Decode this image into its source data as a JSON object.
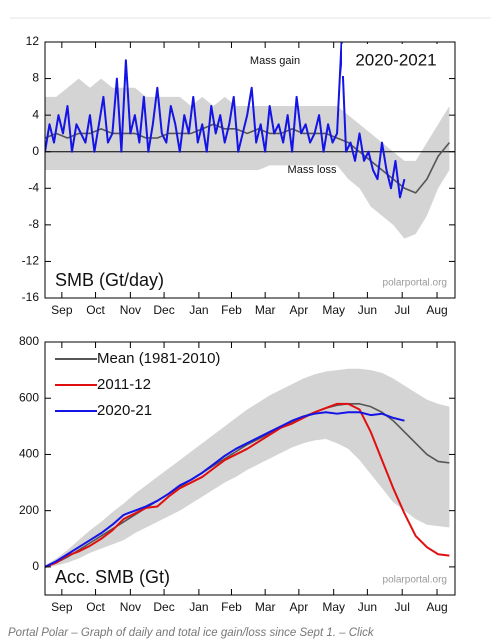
{
  "chart_data": [
    {
      "type": "line",
      "title": "2020-2021",
      "ylabel": "SMB (Gt/day)",
      "source": "polarportal.org",
      "annotations": [
        "Mass gain",
        "Mass loss"
      ],
      "zero_line": true,
      "xlim": [
        0,
        365
      ],
      "xticks": [
        {
          "value": 15,
          "label": "Sep"
        },
        {
          "value": 45,
          "label": "Oct"
        },
        {
          "value": 76,
          "label": "Nov"
        },
        {
          "value": 106,
          "label": "Dec"
        },
        {
          "value": 137,
          "label": "Jan"
        },
        {
          "value": 166,
          "label": "Feb"
        },
        {
          "value": 196,
          "label": "Mar"
        },
        {
          "value": 226,
          "label": "Apr"
        },
        {
          "value": 257,
          "label": "May"
        },
        {
          "value": 287,
          "label": "Jun"
        },
        {
          "value": 318,
          "label": "Jul"
        },
        {
          "value": 349,
          "label": "Aug"
        }
      ],
      "ylim": [
        -16,
        12
      ],
      "yticks": [
        -16,
        -12,
        -8,
        -4,
        0,
        4,
        8,
        12
      ],
      "band": {
        "color": "#d4d4d4",
        "x": [
          0,
          10,
          20,
          30,
          40,
          50,
          60,
          70,
          80,
          90,
          100,
          110,
          120,
          130,
          140,
          150,
          160,
          170,
          180,
          190,
          200,
          210,
          220,
          230,
          240,
          250,
          260,
          270,
          280,
          290,
          300,
          310,
          320,
          330,
          340,
          350,
          360
        ],
        "upper": [
          6,
          6,
          7,
          8,
          7,
          8,
          7,
          7,
          7,
          6,
          6,
          6,
          6,
          5,
          6,
          5,
          6,
          5,
          5,
          5,
          5,
          5,
          5,
          5,
          5,
          5,
          5,
          4,
          3,
          2,
          1,
          0,
          -1,
          -1,
          1,
          3,
          5
        ],
        "lower": [
          -2,
          -2,
          -2,
          -2,
          -2,
          -2,
          -2,
          -2,
          -2,
          -2,
          -2,
          -2,
          -2,
          -2,
          -2,
          -2,
          -2,
          -2,
          -2,
          -2,
          -1.5,
          -1.5,
          -1.5,
          -1.5,
          -1.5,
          -1.5,
          -1.5,
          -3,
          -4,
          -6,
          -7,
          -8,
          -9.5,
          -9,
          -7,
          -4,
          -2
        ]
      },
      "series": [
        {
          "color": "#555555",
          "x": [
            0,
            10,
            20,
            30,
            40,
            50,
            60,
            70,
            80,
            90,
            100,
            110,
            120,
            130,
            140,
            150,
            160,
            170,
            180,
            190,
            200,
            210,
            220,
            230,
            240,
            250,
            260,
            270,
            280,
            290,
            300,
            310,
            320,
            330,
            340,
            350,
            360
          ],
          "values": [
            1.5,
            2,
            1.5,
            2,
            2,
            2.5,
            2,
            2,
            2,
            1.5,
            1.5,
            2,
            2,
            2,
            2.5,
            3,
            2.5,
            2.5,
            2,
            2.5,
            2,
            2,
            2.5,
            2,
            2,
            2,
            1.5,
            1,
            0,
            -1,
            -2,
            -3,
            -4,
            -4.5,
            -3,
            -0.5,
            1
          ]
        },
        {
          "color": "#1414e6",
          "x": [
            0,
            4,
            8,
            12,
            16,
            20,
            24,
            28,
            32,
            36,
            40,
            44,
            48,
            52,
            56,
            60,
            64,
            68,
            72,
            76,
            80,
            84,
            88,
            92,
            96,
            100,
            104,
            108,
            112,
            116,
            120,
            124,
            128,
            132,
            136,
            140,
            144,
            148,
            152,
            156,
            160,
            164,
            168,
            172,
            176,
            180,
            184,
            188,
            192,
            196,
            200,
            204,
            208,
            212,
            216,
            220,
            224,
            228,
            232,
            236,
            240,
            244,
            248,
            252,
            256,
            260,
            264,
            268,
            272,
            276,
            280,
            284,
            288,
            292,
            296,
            300,
            304,
            308,
            312,
            316,
            320
          ],
          "values": [
            0,
            3,
            1,
            4,
            2,
            5,
            0,
            3,
            2,
            1,
            4,
            0,
            3,
            6,
            1,
            2,
            8,
            0,
            10,
            2,
            4,
            1,
            6,
            0,
            3,
            7,
            2,
            1,
            5,
            3,
            0,
            4,
            2,
            6,
            1,
            3,
            0,
            5,
            2,
            4,
            1,
            3,
            6,
            0,
            2,
            4,
            7,
            1,
            3,
            0,
            5,
            2,
            3,
            1,
            4,
            0,
            6,
            2,
            3,
            1,
            2,
            4,
            0,
            3,
            1,
            2,
            12,
            0,
            1,
            -1,
            2,
            -1,
            0,
            -2,
            -3,
            1,
            -2,
            -4,
            -1,
            -5,
            -3
          ]
        }
      ]
    },
    {
      "type": "line",
      "ylabel": "Acc. SMB (Gt)",
      "source": "polarportal.org",
      "legend": "upper left",
      "xlim": [
        0,
        365
      ],
      "xticks": [
        {
          "value": 15,
          "label": "Sep"
        },
        {
          "value": 45,
          "label": "Oct"
        },
        {
          "value": 76,
          "label": "Nov"
        },
        {
          "value": 106,
          "label": "Dec"
        },
        {
          "value": 137,
          "label": "Jan"
        },
        {
          "value": 166,
          "label": "Feb"
        },
        {
          "value": 196,
          "label": "Mar"
        },
        {
          "value": 226,
          "label": "Apr"
        },
        {
          "value": 257,
          "label": "May"
        },
        {
          "value": 287,
          "label": "Jun"
        },
        {
          "value": 318,
          "label": "Jul"
        },
        {
          "value": 349,
          "label": "Aug"
        }
      ],
      "ylim": [
        -100,
        800
      ],
      "yticks": [
        0,
        200,
        400,
        600,
        800
      ],
      "band": {
        "color": "#d4d4d4",
        "x": [
          0,
          10,
          20,
          30,
          40,
          50,
          60,
          70,
          80,
          90,
          100,
          110,
          120,
          130,
          140,
          150,
          160,
          170,
          180,
          190,
          200,
          210,
          220,
          230,
          240,
          250,
          260,
          270,
          280,
          290,
          300,
          310,
          320,
          330,
          340,
          350,
          360
        ],
        "upper": [
          5,
          30,
          60,
          95,
          130,
          160,
          195,
          225,
          260,
          290,
          320,
          350,
          380,
          410,
          440,
          470,
          500,
          530,
          560,
          585,
          610,
          630,
          650,
          670,
          685,
          695,
          700,
          705,
          705,
          700,
          690,
          670,
          645,
          620,
          595,
          580,
          570
        ],
        "lower": [
          -5,
          5,
          15,
          30,
          50,
          65,
          80,
          95,
          120,
          140,
          160,
          180,
          200,
          225,
          250,
          275,
          300,
          320,
          345,
          365,
          385,
          405,
          425,
          440,
          450,
          455,
          440,
          420,
          380,
          330,
          280,
          230,
          200,
          170,
          150,
          145,
          140
        ]
      },
      "series": [
        {
          "name": "Mean (1981-2010)",
          "color": "#555555",
          "x": [
            0,
            10,
            20,
            30,
            40,
            50,
            60,
            70,
            80,
            90,
            100,
            110,
            120,
            130,
            140,
            150,
            160,
            170,
            180,
            190,
            200,
            210,
            220,
            230,
            240,
            250,
            260,
            270,
            280,
            290,
            300,
            310,
            320,
            330,
            340,
            350,
            360
          ],
          "values": [
            0,
            15,
            35,
            60,
            85,
            110,
            135,
            160,
            185,
            210,
            235,
            260,
            285,
            310,
            335,
            360,
            385,
            410,
            435,
            455,
            475,
            495,
            515,
            535,
            550,
            565,
            575,
            580,
            580,
            570,
            550,
            520,
            480,
            440,
            400,
            375,
            370
          ]
        },
        {
          "name": "2011-12",
          "color": "#e01010",
          "x": [
            0,
            10,
            20,
            30,
            40,
            50,
            60,
            70,
            80,
            90,
            100,
            110,
            120,
            130,
            140,
            150,
            160,
            170,
            180,
            190,
            200,
            210,
            220,
            230,
            240,
            250,
            260,
            270,
            280,
            290,
            300,
            310,
            320,
            330,
            340,
            350,
            360
          ],
          "values": [
            0,
            15,
            40,
            55,
            75,
            100,
            130,
            170,
            190,
            210,
            215,
            250,
            280,
            300,
            320,
            350,
            380,
            400,
            420,
            445,
            470,
            495,
            510,
            530,
            550,
            565,
            580,
            580,
            560,
            480,
            380,
            280,
            190,
            110,
            70,
            45,
            40
          ]
        },
        {
          "name": "2020-21",
          "color": "#1414e6",
          "x": [
            0,
            10,
            20,
            30,
            40,
            50,
            60,
            70,
            80,
            90,
            100,
            110,
            120,
            130,
            140,
            150,
            160,
            170,
            180,
            190,
            200,
            210,
            220,
            230,
            240,
            250,
            260,
            270,
            280,
            290,
            300,
            310,
            320
          ],
          "values": [
            0,
            20,
            45,
            70,
            95,
            120,
            150,
            185,
            200,
            215,
            235,
            260,
            290,
            310,
            335,
            365,
            395,
            420,
            440,
            460,
            480,
            500,
            520,
            535,
            545,
            550,
            545,
            550,
            550,
            540,
            545,
            530,
            520
          ]
        }
      ]
    }
  ],
  "caption": "Portal Polar – Graph of daily and total ice gain/loss since Sept 1. – Click"
}
